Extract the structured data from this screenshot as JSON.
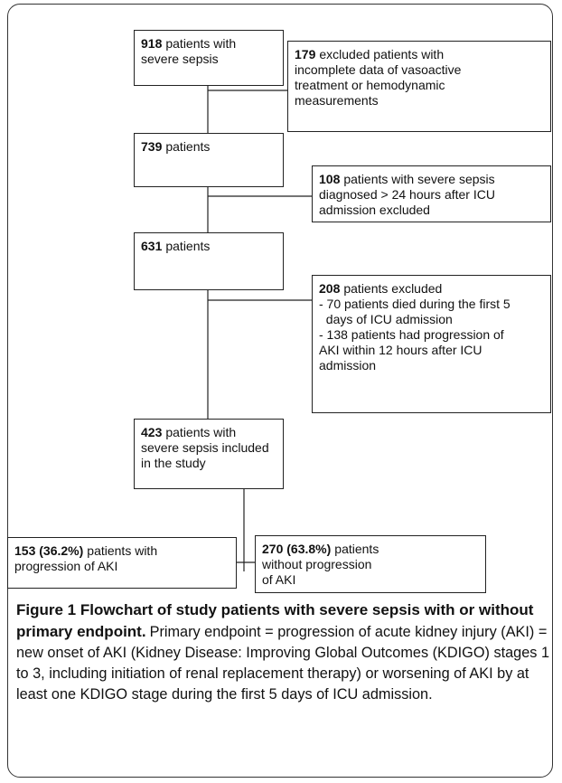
{
  "nodes": [
    {
      "number": "918",
      "lines": [
        "patients with",
        "severe sepsis"
      ]
    },
    {
      "number": "179",
      "lines": [
        "excluded patients with",
        "incomplete data of vasoactive",
        "treatment or hemodynamic",
        "measurements"
      ]
    },
    {
      "number": "739",
      "lines": [
        "patients"
      ]
    },
    {
      "number": "108",
      "lines": [
        "patients with severe sepsis",
        "diagnosed > 24 hours after ICU",
        "admission excluded"
      ]
    },
    {
      "number": "631",
      "lines": [
        "patients"
      ]
    },
    {
      "number": "208",
      "lines": [
        "patients excluded",
        "- 70 patients died during the first 5",
        "  days of ICU admission",
        "- 138 patients had progression of",
        "AKI within 12 hours after ICU",
        "admission"
      ]
    },
    {
      "number": "423",
      "lines": [
        "patients with",
        "severe sepsis included",
        "in the study"
      ]
    },
    {
      "number": "153 (36.2%)",
      "lines": [
        "patients with",
        "progression of AKI"
      ]
    },
    {
      "number": "270 (63.8%)",
      "lines": [
        "patients",
        "without progression",
        "of AKI"
      ]
    }
  ],
  "caption": {
    "title": "Figure 1 Flowchart of study patients with severe sepsis with or without primary endpoint.",
    "text": "Primary endpoint = progression of acute kidney injury (AKI) = new onset of AKI (Kidney Disease: Improving Global Outcomes (KDIGO) stages 1 to 3, including initiation of renal replacement therapy) or worsening of AKI by at least one KDIGO stage during the first 5 days of ICU admission."
  }
}
